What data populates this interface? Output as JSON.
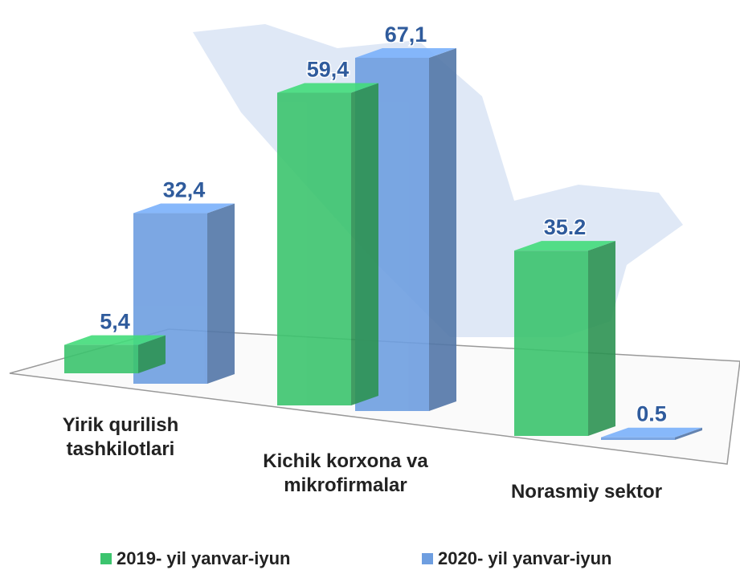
{
  "chart_data": {
    "type": "bar",
    "categories": [
      "Yirik qurilish tashkilotlari",
      "Kichik korxona va mikrofirmalar",
      "Norasmiy sektor"
    ],
    "series": [
      {
        "name": "2019- yil yanvar-iyun",
        "color": "#3cc46e",
        "values": [
          5.4,
          59.4,
          35.2
        ],
        "value_labels": [
          "5,4",
          "59,4",
          "35.2"
        ]
      },
      {
        "name": "2020- yil yanvar-iyun",
        "color": "#6e9ee0",
        "values": [
          32.4,
          67.1,
          0.5
        ],
        "value_labels": [
          "32,4",
          "67,1",
          "0.5"
        ]
      }
    ]
  }
}
